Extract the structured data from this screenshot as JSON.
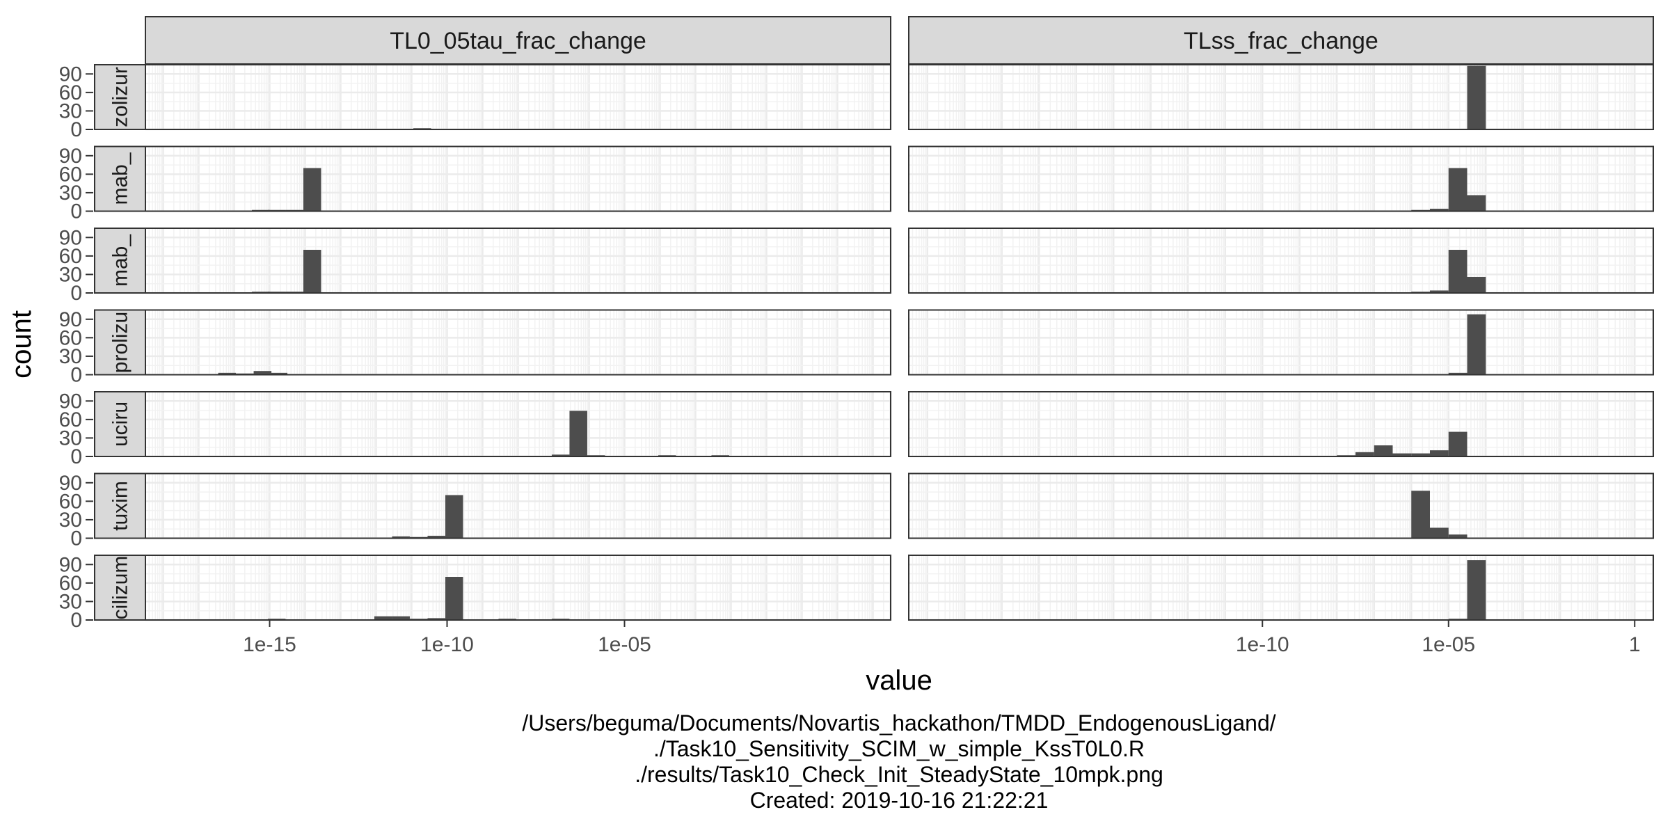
{
  "chart_data": {
    "type": "histogram",
    "xscale": "log10",
    "xlabel": "value",
    "ylabel": "count",
    "ylim": [
      0,
      105
    ],
    "y_ticks": [
      0,
      30,
      60,
      90
    ],
    "grid": true,
    "panels": [
      {
        "name": "TL0_05tau_frac_change",
        "xlim_log10": [
          -18.5,
          2.5
        ],
        "x_ticks": [
          {
            "log10": -15,
            "label": "1e-15"
          },
          {
            "log10": -10,
            "label": "1e-10"
          },
          {
            "log10": -5,
            "label": "1e-05"
          }
        ]
      },
      {
        "name": "TLss_frac_change",
        "xlim_log10": [
          -19.5,
          0.5
        ],
        "x_ticks": [
          {
            "log10": -10,
            "label": "1e-10"
          },
          {
            "log10": -5,
            "label": "1e-05"
          },
          {
            "log10": 0,
            "label": "1"
          }
        ]
      }
    ],
    "rows": [
      {
        "label": "zolizur",
        "panels": [
          {
            "bins": [
              {
                "x": -15.7,
                "count": 1
              },
              {
                "x": -15.25,
                "count": 1
              },
              {
                "x": -11.6,
                "count": 0.5
              },
              {
                "x": -11.1,
                "count": 1
              },
              {
                "x": -10.7,
                "count": 2
              },
              {
                "x": -10.2,
                "count": 0.5
              },
              {
                "x": -9.75,
                "count": 1
              }
            ]
          },
          {
            "bins": [
              {
                "x": -5.25,
                "count": 0.5
              },
              {
                "x": -4.75,
                "count": 0.5
              },
              {
                "x": -4.25,
                "count": 103
              }
            ]
          }
        ]
      },
      {
        "label": "mab_",
        "panels": [
          {
            "bins": [
              {
                "x": -15.7,
                "count": 1
              },
              {
                "x": -15.25,
                "count": 2
              },
              {
                "x": -14.8,
                "count": 2
              },
              {
                "x": -14.3,
                "count": 2
              },
              {
                "x": -13.8,
                "count": 70
              },
              {
                "x": -13.35,
                "count": 1
              },
              {
                "x": -12.35,
                "count": 1
              },
              {
                "x": -11.4,
                "count": 1
              },
              {
                "x": -10.5,
                "count": 1
              },
              {
                "x": -10.05,
                "count": 1
              },
              {
                "x": -9.5,
                "count": 1
              },
              {
                "x": -8.75,
                "count": 1
              },
              {
                "x": -7.8,
                "count": 1
              }
            ]
          },
          {
            "bins": [
              {
                "x": -6.75,
                "count": 1
              },
              {
                "x": -6.25,
                "count": 1
              },
              {
                "x": -5.75,
                "count": 2
              },
              {
                "x": -5.25,
                "count": 4
              },
              {
                "x": -4.75,
                "count": 70
              },
              {
                "x": -4.25,
                "count": 26
              }
            ]
          }
        ]
      },
      {
        "label": "mab_",
        "panels": [
          {
            "bins": [
              {
                "x": -15.7,
                "count": 1
              },
              {
                "x": -15.25,
                "count": 2
              },
              {
                "x": -14.8,
                "count": 2
              },
              {
                "x": -14.3,
                "count": 2
              },
              {
                "x": -13.8,
                "count": 70
              },
              {
                "x": -13.35,
                "count": 1
              },
              {
                "x": -12.35,
                "count": 1
              },
              {
                "x": -11.4,
                "count": 1
              },
              {
                "x": -10.5,
                "count": 1
              },
              {
                "x": -10.05,
                "count": 1
              },
              {
                "x": -9.5,
                "count": 1
              },
              {
                "x": -8.75,
                "count": 1
              },
              {
                "x": -7.8,
                "count": 1
              }
            ]
          },
          {
            "bins": [
              {
                "x": -6.75,
                "count": 1
              },
              {
                "x": -6.25,
                "count": 1
              },
              {
                "x": -5.75,
                "count": 2
              },
              {
                "x": -5.25,
                "count": 4
              },
              {
                "x": -4.75,
                "count": 70
              },
              {
                "x": -4.25,
                "count": 26
              }
            ]
          }
        ]
      },
      {
        "label": "prolizu",
        "panels": [
          {
            "bins": [
              {
                "x": -16.2,
                "count": 3
              },
              {
                "x": -15.7,
                "count": 2
              },
              {
                "x": -15.2,
                "count": 6
              },
              {
                "x": -14.75,
                "count": 3
              }
            ]
          },
          {
            "bins": [
              {
                "x": -18.2,
                "count": 1
              },
              {
                "x": -7.75,
                "count": 1
              },
              {
                "x": -4.75,
                "count": 3
              },
              {
                "x": -4.25,
                "count": 98
              },
              {
                "x": -3.75,
                "count": 0.5
              },
              {
                "x": -2.75,
                "count": 1
              }
            ]
          }
        ]
      },
      {
        "label": "uciru",
        "panels": [
          {
            "bins": [
              {
                "x": -15.7,
                "count": 1
              },
              {
                "x": -15.25,
                "count": 1
              },
              {
                "x": -13.8,
                "count": 0.5
              },
              {
                "x": -12.3,
                "count": 0.5
              },
              {
                "x": -10.7,
                "count": 0.5
              },
              {
                "x": -8.2,
                "count": 1
              },
              {
                "x": -7.3,
                "count": 1
              },
              {
                "x": -6.8,
                "count": 3
              },
              {
                "x": -6.3,
                "count": 74
              },
              {
                "x": -5.8,
                "count": 2
              },
              {
                "x": -4.8,
                "count": 1
              },
              {
                "x": -3.8,
                "count": 2
              },
              {
                "x": -2.8,
                "count": 1
              },
              {
                "x": -2.3,
                "count": 2
              },
              {
                "x": -1.3,
                "count": 0.5
              }
            ]
          },
          {
            "bins": [
              {
                "x": -7.75,
                "count": 2
              },
              {
                "x": -7.25,
                "count": 7
              },
              {
                "x": -6.75,
                "count": 18
              },
              {
                "x": -6.25,
                "count": 5
              },
              {
                "x": -5.75,
                "count": 5
              },
              {
                "x": -5.25,
                "count": 10
              },
              {
                "x": -4.75,
                "count": 40
              },
              {
                "x": -4.25,
                "count": 0.5
              },
              {
                "x": -1.75,
                "count": 0.5
              },
              {
                "x": -0.75,
                "count": 0.5
              }
            ]
          }
        ]
      },
      {
        "label": "tuxim",
        "panels": [
          {
            "bins": [
              {
                "x": -15.7,
                "count": 0.5
              },
              {
                "x": -14.3,
                "count": 1
              },
              {
                "x": -12.8,
                "count": 0.5
              },
              {
                "x": -11.3,
                "count": 3
              },
              {
                "x": -10.8,
                "count": 2
              },
              {
                "x": -10.3,
                "count": 4
              },
              {
                "x": -9.8,
                "count": 70
              },
              {
                "x": -8.8,
                "count": 0.5
              },
              {
                "x": -7.8,
                "count": 0.5
              },
              {
                "x": -6.8,
                "count": 0.5
              },
              {
                "x": -5.8,
                "count": 0.5
              },
              {
                "x": -4.8,
                "count": 0.5
              }
            ]
          },
          {
            "bins": [
              {
                "x": -6.75,
                "count": 0.5
              },
              {
                "x": -5.75,
                "count": 77
              },
              {
                "x": -5.25,
                "count": 17
              },
              {
                "x": -4.75,
                "count": 6
              },
              {
                "x": -4.25,
                "count": 0.5
              }
            ]
          }
        ]
      },
      {
        "label": "cilizum",
        "panels": [
          {
            "bins": [
              {
                "x": -16.7,
                "count": 0.5
              },
              {
                "x": -14.8,
                "count": 2
              },
              {
                "x": -14.3,
                "count": 0.5
              },
              {
                "x": -11.8,
                "count": 6
              },
              {
                "x": -11.3,
                "count": 6
              },
              {
                "x": -10.8,
                "count": 2
              },
              {
                "x": -10.3,
                "count": 3
              },
              {
                "x": -9.8,
                "count": 70
              },
              {
                "x": -9.3,
                "count": 1
              },
              {
                "x": -8.3,
                "count": 2
              },
              {
                "x": -7.8,
                "count": 1
              },
              {
                "x": -6.8,
                "count": 2
              },
              {
                "x": -5.3,
                "count": 0.5
              },
              {
                "x": -4.8,
                "count": 0.5
              },
              {
                "x": -3.8,
                "count": 0.5
              }
            ]
          },
          {
            "bins": [
              {
                "x": -14.2,
                "count": 1
              },
              {
                "x": -13.2,
                "count": 1
              },
              {
                "x": -6.75,
                "count": 0.5
              },
              {
                "x": -5.75,
                "count": 1
              },
              {
                "x": -4.75,
                "count": 2
              },
              {
                "x": -4.25,
                "count": 97
              }
            ]
          }
        ]
      }
    ]
  },
  "caption": {
    "lines": [
      "/Users/beguma/Documents/Novartis_hackathon/TMDD_EndogenousLigand/",
      "./Task10_Sensitivity_SCIM_w_simple_KssT0L0.R",
      "./results/Task10_Check_Init_SteadyState_10mpk.png",
      "Created: 2019-10-16 21:22:21"
    ]
  },
  "colors": {
    "bar": "#4d4d4d",
    "panel_border": "#333333",
    "strip_fill": "#d9d9d9",
    "grid_major": "#ebebeb",
    "grid_minor": "#f2f2f2"
  }
}
